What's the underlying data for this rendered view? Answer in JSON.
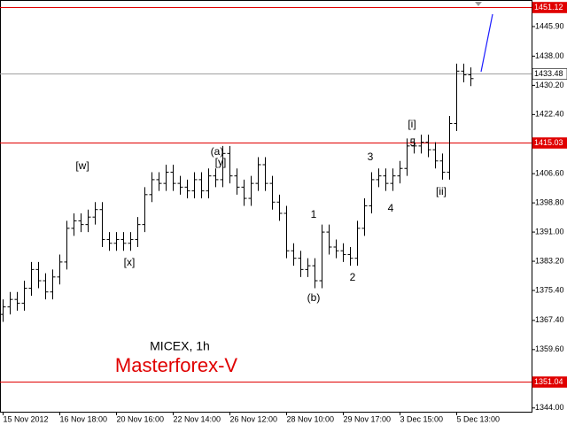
{
  "chart_data": {
    "type": "ohlc",
    "title": "MICEX, 1h",
    "watermark": "Masterforex-V",
    "categories": [
      "15 Nov 2012",
      null,
      null,
      null,
      null,
      null,
      null,
      null,
      "16 Nov 18:00",
      null,
      null,
      null,
      null,
      null,
      null,
      null,
      "20 Nov 16:00",
      null,
      null,
      null,
      null,
      null,
      null,
      null,
      "22 Nov 14:00",
      null,
      null,
      null,
      null,
      null,
      null,
      null,
      "26 Nov 12:00",
      null,
      null,
      null,
      null,
      null,
      null,
      null,
      "28 Nov 10:00",
      null,
      null,
      null,
      null,
      null,
      null,
      null,
      "29 Nov 17:00",
      null,
      null,
      null,
      null,
      null,
      null,
      null,
      "3 Dec 15:00",
      null,
      null,
      null,
      null,
      null,
      null,
      null,
      "5 Dec 13:00",
      null,
      null
    ],
    "open": [
      1369,
      1371,
      1373,
      1372,
      1376,
      1381,
      1378,
      1375,
      1379,
      1383,
      1392,
      1394,
      1393,
      1395,
      1397,
      1389,
      1388,
      1389,
      1388,
      1389,
      1393,
      1401,
      1405,
      1404,
      1407,
      1404,
      1403,
      1402,
      1405,
      1402,
      1406,
      1405,
      1412,
      1406,
      1403,
      1400,
      1404,
      1409,
      1404,
      1399,
      1396,
      1386,
      1384,
      1381,
      1382,
      1378,
      1391,
      1387,
      1386,
      1385,
      1384,
      1392,
      1398,
      1405,
      1406,
      1404,
      1406,
      1408,
      1414,
      1414,
      1415,
      1413,
      1410,
      1407,
      1420,
      1434,
      1433
    ],
    "high": [
      1373,
      1375,
      1375,
      1378,
      1383,
      1383,
      1380,
      1381,
      1385,
      1394,
      1396,
      1396,
      1397,
      1399,
      1399,
      1391,
      1391,
      1391,
      1391,
      1395,
      1403,
      1407,
      1407,
      1409,
      1409,
      1406,
      1405,
      1407,
      1407,
      1408,
      1408,
      1414,
      1414,
      1408,
      1405,
      1406,
      1411,
      1411,
      1406,
      1401,
      1398,
      1388,
      1386,
      1384,
      1384,
      1393,
      1393,
      1389,
      1388,
      1387,
      1394,
      1400,
      1407,
      1408,
      1408,
      1408,
      1410,
      1416,
      1416,
      1417,
      1417,
      1415,
      1412,
      1422,
      1436,
      1436,
      1435
    ],
    "low": [
      1367,
      1369,
      1370,
      1370,
      1374,
      1376,
      1373,
      1373,
      1377,
      1381,
      1390,
      1391,
      1391,
      1393,
      1387,
      1386,
      1386,
      1386,
      1386,
      1387,
      1391,
      1399,
      1402,
      1402,
      1402,
      1401,
      1400,
      1400,
      1400,
      1400,
      1403,
      1403,
      1404,
      1401,
      1398,
      1398,
      1402,
      1402,
      1397,
      1394,
      1384,
      1382,
      1379,
      1379,
      1376,
      1376,
      1385,
      1384,
      1383,
      1382,
      1382,
      1390,
      1396,
      1403,
      1402,
      1402,
      1404,
      1406,
      1412,
      1412,
      1411,
      1408,
      1405,
      1405,
      1418,
      1431,
      1430
    ],
    "close": [
      1371,
      1373,
      1372,
      1376,
      1381,
      1378,
      1375,
      1379,
      1383,
      1392,
      1394,
      1393,
      1395,
      1397,
      1389,
      1388,
      1389,
      1388,
      1389,
      1393,
      1401,
      1405,
      1404,
      1407,
      1404,
      1403,
      1402,
      1405,
      1402,
      1406,
      1405,
      1412,
      1406,
      1403,
      1400,
      1404,
      1409,
      1404,
      1399,
      1396,
      1386,
      1384,
      1381,
      1382,
      1378,
      1391,
      1387,
      1386,
      1385,
      1384,
      1392,
      1398,
      1405,
      1406,
      1404,
      1406,
      1408,
      1414,
      1414,
      1415,
      1413,
      1410,
      1407,
      1420,
      1434,
      1433,
      1432
    ],
    "color": "#000000",
    "ylim": [
      1343,
      1453
    ],
    "yticks": [
      {
        "value": 1445.9,
        "label": "1445.90"
      },
      {
        "value": 1438,
        "label": "1438.00"
      },
      {
        "value": 1430.2,
        "label": "1430.20"
      },
      {
        "value": 1422.4,
        "label": "1422.40"
      },
      {
        "value": 1406.6,
        "label": "1406.60"
      },
      {
        "value": 1398.8,
        "label": "1398.80"
      },
      {
        "value": 1391,
        "label": "1391.00"
      },
      {
        "value": 1383.2,
        "label": "1383.20"
      },
      {
        "value": 1375.4,
        "label": "1375.40"
      },
      {
        "value": 1367.4,
        "label": "1367.40"
      },
      {
        "value": 1359.6,
        "label": "1359.60"
      },
      {
        "value": 1344,
        "label": "1344.00"
      }
    ],
    "levels": [
      {
        "value": 1451.12,
        "color": "#e00000"
      },
      {
        "value": 1433.48,
        "color": "#a0a0a0"
      },
      {
        "value": 1415.03,
        "color": "#e00000"
      },
      {
        "value": 1351.04,
        "color": "#e00000"
      }
    ],
    "annotations": [
      "[w]",
      "[x]",
      "(a)",
      "[y]",
      "(b)",
      "1",
      "2",
      "3",
      "4",
      "5",
      "[i]",
      "[ii]"
    ]
  }
}
